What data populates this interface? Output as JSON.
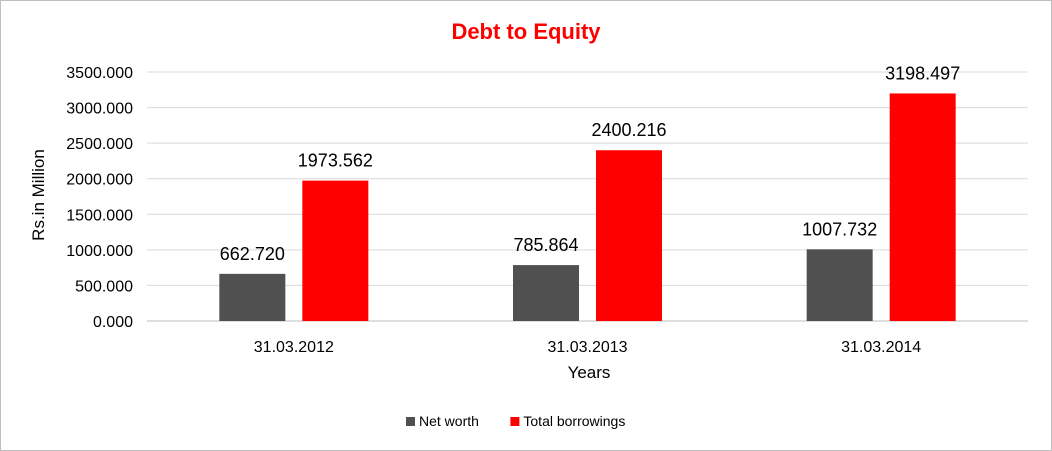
{
  "chart_data": {
    "type": "bar",
    "title": "Debt to Equity",
    "xlabel": "Years",
    "ylabel": "Rs.in Million",
    "categories": [
      "31.03.2012",
      "31.03.2013",
      "31.03.2014"
    ],
    "series": [
      {
        "name": "Net worth",
        "values": [
          662.72,
          785.864,
          1007.732
        ],
        "labels": [
          "662.720",
          "785.864",
          "1007.732"
        ],
        "color": "#505050"
      },
      {
        "name": "Total borrowings",
        "values": [
          1973.562,
          2400.216,
          3198.497
        ],
        "labels": [
          "1973.562",
          "2400.216",
          "3198.497"
        ],
        "color": "#ff0000"
      }
    ],
    "ylim": [
      0,
      3500
    ],
    "yticks": [
      "0.000",
      "500.000",
      "1000.000",
      "1500.000",
      "2000.000",
      "2500.000",
      "3000.000",
      "3500.000"
    ],
    "grid": true,
    "legend_position": "bottom",
    "title_color": "#ff0000"
  }
}
